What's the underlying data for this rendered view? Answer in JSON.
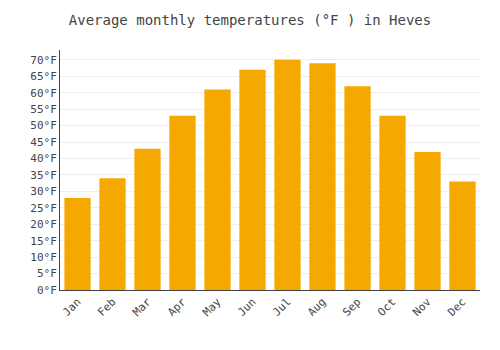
{
  "chart_data": {
    "type": "bar",
    "title": "Average monthly temperatures (°F ) in Heves",
    "categories": [
      "Jan",
      "Feb",
      "Mar",
      "Apr",
      "May",
      "Jun",
      "Jul",
      "Aug",
      "Sep",
      "Oct",
      "Nov",
      "Dec"
    ],
    "values": [
      28,
      34,
      43,
      53,
      61,
      67,
      70,
      69,
      62,
      53,
      42,
      33
    ],
    "color": "#F5A800",
    "ylim": [
      0,
      73
    ],
    "yticks": [
      {
        "value": 0,
        "label": "0°F"
      },
      {
        "value": 5,
        "label": "5°F"
      },
      {
        "value": 10,
        "label": "10°F"
      },
      {
        "value": 15,
        "label": "15°F"
      },
      {
        "value": 20,
        "label": "20°F"
      },
      {
        "value": 25,
        "label": "25°F"
      },
      {
        "value": 30,
        "label": "30°F"
      },
      {
        "value": 35,
        "label": "35°F"
      },
      {
        "value": 40,
        "label": "40°F"
      },
      {
        "value": 45,
        "label": "45°F"
      },
      {
        "value": 50,
        "label": "50°F"
      },
      {
        "value": 55,
        "label": "55°F"
      },
      {
        "value": 60,
        "label": "60°F"
      },
      {
        "value": 65,
        "label": "65°F"
      },
      {
        "value": 70,
        "label": "70°F"
      }
    ],
    "grid": true
  }
}
